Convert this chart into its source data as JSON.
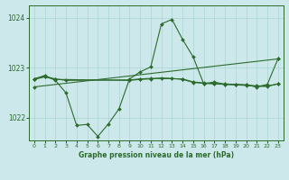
{
  "title": "Graphe pression niveau de la mer (hPa)",
  "background_color": "#cce8ea",
  "grid_color": "#aad4d6",
  "line_color": "#2d6b2d",
  "ylim": [
    1021.55,
    1024.25
  ],
  "yticks": [
    1022,
    1023,
    1024
  ],
  "xlim": [
    -0.5,
    23.5
  ],
  "xticks": [
    0,
    1,
    2,
    3,
    4,
    5,
    6,
    7,
    8,
    9,
    10,
    11,
    12,
    13,
    14,
    15,
    16,
    17,
    18,
    19,
    20,
    21,
    22,
    23
  ],
  "line_main": {
    "x": [
      0,
      1,
      2,
      3,
      4,
      5,
      6,
      7,
      8,
      9,
      10,
      11,
      12,
      13,
      14,
      15,
      16,
      17,
      18,
      19,
      20,
      21,
      22,
      23
    ],
    "y": [
      1022.78,
      1022.85,
      1022.75,
      1022.5,
      1021.85,
      1021.87,
      1021.63,
      1021.88,
      1022.18,
      1022.78,
      1022.92,
      1023.02,
      1023.88,
      1023.97,
      1023.57,
      1023.22,
      1022.68,
      1022.72,
      1022.67,
      1022.67,
      1022.66,
      1022.62,
      1022.67,
      1023.18
    ]
  },
  "line_flat1": {
    "x": [
      0,
      1,
      2,
      3,
      9,
      10,
      11,
      14,
      15,
      16,
      17,
      18,
      19,
      20,
      21,
      22,
      23
    ],
    "y": [
      1022.78,
      1022.83,
      1022.78,
      1022.75,
      1022.76,
      1022.78,
      1022.79,
      1022.78,
      1022.72,
      1022.7,
      1022.69,
      1022.68,
      1022.67,
      1022.66,
      1022.64,
      1022.64,
      1022.68
    ]
  },
  "line_flat2": {
    "x": [
      0,
      1,
      2,
      9,
      10,
      11,
      12,
      13,
      14,
      15,
      16,
      17,
      18,
      19,
      20,
      21,
      22,
      23
    ],
    "y": [
      1022.77,
      1022.82,
      1022.77,
      1022.75,
      1022.77,
      1022.78,
      1022.8,
      1022.79,
      1022.77,
      1022.71,
      1022.69,
      1022.68,
      1022.67,
      1022.66,
      1022.65,
      1022.63,
      1022.63,
      1022.68
    ]
  },
  "line_rising": {
    "x": [
      0,
      23
    ],
    "y": [
      1022.62,
      1023.18
    ]
  }
}
